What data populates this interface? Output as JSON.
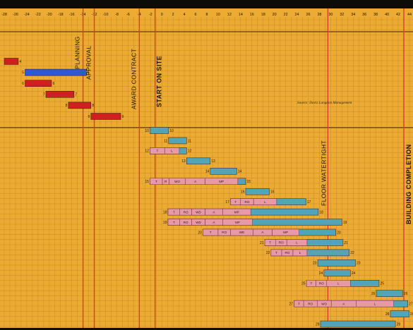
{
  "colors": {
    "background": "#ecab33",
    "grid": "#c98e28",
    "milestone_red": "#d5402b",
    "bar_red": "#cf1f1f",
    "bar_blue": "#2c5bd1",
    "bar_teal": "#52a5b9",
    "bar_pink": "#e79aa6",
    "frame": "#0e0c08"
  },
  "chart_data": {
    "type": "gantt",
    "x_ticks": [
      -28,
      -26,
      -24,
      -22,
      -20,
      -18,
      -16,
      -14,
      -12,
      -10,
      -8,
      -6,
      -4,
      -2,
      0,
      2,
      4,
      6,
      8,
      10,
      12,
      14,
      16,
      18,
      20,
      22,
      24,
      26,
      28,
      30,
      32,
      34,
      36,
      38,
      40,
      42,
      44
    ],
    "xlim": [
      -28,
      44
    ],
    "source": "Source: Davis Langdon Management",
    "milestones": [
      {
        "x": -14,
        "label": "PLANNING"
      },
      {
        "x": -12,
        "label": "APPROVAL"
      },
      {
        "x": -4,
        "label": "AWARD CONTRACT"
      },
      {
        "x": -1.2,
        "label": "START ON SITE",
        "bold": true
      },
      {
        "x": 29.5,
        "label": "FLOOR WATERTIGHT"
      },
      {
        "x": 43,
        "label": "BUILDING COMPLETION",
        "bold": true
      }
    ],
    "bars": [
      {
        "row": 1,
        "start": -28,
        "end": -25.5,
        "color": "red",
        "right_label": "4"
      },
      {
        "row": 2,
        "start": -24.3,
        "end": -13.4,
        "color": "blue",
        "left_label": "5",
        "right_label": "5"
      },
      {
        "row": 3,
        "start": -24.3,
        "end": -19.6,
        "color": "red",
        "left_label": "6",
        "right_label": "6"
      },
      {
        "row": 4,
        "start": -20.6,
        "end": -15.6,
        "color": "red",
        "left_label": "7",
        "right_label": "7"
      },
      {
        "row": 5,
        "start": -16.6,
        "end": -12.6,
        "color": "red",
        "left_label": "8",
        "right_label": "8"
      },
      {
        "row": 6,
        "start": -12.6,
        "end": -7.3,
        "color": "red",
        "left_label": "9",
        "right_label": "9"
      },
      {
        "row": 7,
        "start": -2.1,
        "end": 1.2,
        "color": "teal",
        "left_label": "10",
        "right_label": "10"
      },
      {
        "row": 8,
        "start": 1.2,
        "end": 4.4,
        "color": "teal",
        "left_label": "11",
        "right_label": "11"
      },
      {
        "row": 9,
        "start": -2.1,
        "end": 4.4,
        "color": "teal",
        "left_label": "12",
        "right_label": "12",
        "segments": [
          {
            "start": -2.1,
            "end": 0.5,
            "label": "T"
          },
          {
            "start": 0.5,
            "end": 3.1,
            "label": "L"
          }
        ]
      },
      {
        "row": 10,
        "start": 4.4,
        "end": 8.6,
        "color": "teal",
        "left_label": "13",
        "right_label": "13"
      },
      {
        "row": 11,
        "start": 8.6,
        "end": 13.3,
        "color": "teal",
        "left_label": "14",
        "right_label": "14"
      },
      {
        "row": 12,
        "start": -2.1,
        "end": 14.9,
        "color": "teal",
        "left_label": "15",
        "right_label": "15",
        "segments": [
          {
            "start": -2.1,
            "end": 0.1,
            "label": "T"
          },
          {
            "start": 0.1,
            "end": 1.3,
            "label": "R"
          },
          {
            "start": 1.3,
            "end": 4.2,
            "label": "WO"
          },
          {
            "start": 4.2,
            "end": 7.7,
            "label": "A"
          },
          {
            "start": 7.7,
            "end": 13.5,
            "label": "MP"
          }
        ]
      },
      {
        "row": 13,
        "start": 14.9,
        "end": 19.1,
        "color": "teal",
        "left_label": "16",
        "right_label": "16"
      },
      {
        "row": 14,
        "start": 12.2,
        "end": 25.6,
        "color": "teal",
        "left_label": "17",
        "right_label": "17",
        "segments": [
          {
            "start": 12.2,
            "end": 14.0,
            "label": "T"
          },
          {
            "start": 14.0,
            "end": 16.3,
            "label": "RO"
          },
          {
            "start": 16.3,
            "end": 20.4,
            "label": "L"
          }
        ]
      },
      {
        "row": 15,
        "start": 1.1,
        "end": 27.8,
        "color": "teal",
        "left_label": "18",
        "right_label": "18",
        "segments": [
          {
            "start": 1.1,
            "end": 3.2,
            "label": "T"
          },
          {
            "start": 3.2,
            "end": 5.3,
            "label": "RO"
          },
          {
            "start": 5.3,
            "end": 7.7,
            "label": "WD"
          },
          {
            "start": 7.7,
            "end": 10.8,
            "label": "A"
          },
          {
            "start": 10.8,
            "end": 15.8,
            "label": "MP"
          }
        ]
      },
      {
        "row": 16,
        "start": 1.1,
        "end": 32.0,
        "color": "teal",
        "left_label": "19",
        "right_label": "19",
        "segments": [
          {
            "start": 1.1,
            "end": 3.2,
            "label": "T"
          },
          {
            "start": 3.2,
            "end": 5.3,
            "label": "RO"
          },
          {
            "start": 5.3,
            "end": 7.7,
            "label": "WD"
          },
          {
            "start": 7.7,
            "end": 10.8,
            "label": "A"
          },
          {
            "start": 10.8,
            "end": 16.1,
            "label": "MP"
          }
        ]
      },
      {
        "row": 17,
        "start": 7.3,
        "end": 30.9,
        "color": "teal",
        "left_label": "20",
        "right_label": "20",
        "segments": [
          {
            "start": 7.3,
            "end": 10.0,
            "label": "T"
          },
          {
            "start": 10.0,
            "end": 12.2,
            "label": "RO"
          },
          {
            "start": 12.2,
            "end": 16.2,
            "label": "WD"
          },
          {
            "start": 16.2,
            "end": 19.6,
            "label": "A"
          },
          {
            "start": 19.6,
            "end": 24.4,
            "label": "MP"
          }
        ]
      },
      {
        "row": 18,
        "start": 18.3,
        "end": 32.2,
        "color": "teal",
        "left_label": "21",
        "right_label": "21",
        "segments": [
          {
            "start": 18.3,
            "end": 20.2,
            "label": "T"
          },
          {
            "start": 20.2,
            "end": 22.2,
            "label": "RO"
          },
          {
            "start": 22.2,
            "end": 25.8,
            "label": "L"
          }
        ]
      },
      {
        "row": 19,
        "start": 19.4,
        "end": 33.3,
        "color": "teal",
        "left_label": "22",
        "right_label": "22",
        "segments": [
          {
            "start": 19.4,
            "end": 21.3,
            "label": "T"
          },
          {
            "start": 21.3,
            "end": 23.3,
            "label": "RO"
          },
          {
            "start": 23.3,
            "end": 25.8,
            "label": "L"
          }
        ]
      },
      {
        "row": 20,
        "start": 27.7,
        "end": 34.4,
        "color": "teal",
        "left_label": "23",
        "right_label": "23"
      },
      {
        "row": 21,
        "start": 28.8,
        "end": 33.5,
        "color": "teal",
        "left_label": "24",
        "right_label": "24"
      },
      {
        "row": 22,
        "start": 25.7,
        "end": 38.6,
        "color": "teal",
        "left_label": "25",
        "right_label": "25",
        "segments": [
          {
            "start": 25.7,
            "end": 27.4,
            "label": "T"
          },
          {
            "start": 27.4,
            "end": 29.3,
            "label": "RO"
          },
          {
            "start": 29.3,
            "end": 33.5,
            "label": "L"
          }
        ]
      },
      {
        "row": 23,
        "start": 38.1,
        "end": 42.8,
        "color": "teal",
        "left_label": "26",
        "right_label": "26"
      },
      {
        "row": 24,
        "start": 23.5,
        "end": 43.7,
        "color": "teal",
        "left_label": "27",
        "right_label": "27",
        "segments": [
          {
            "start": 23.5,
            "end": 25.2,
            "label": "T"
          },
          {
            "start": 25.2,
            "end": 27.6,
            "label": "RO"
          },
          {
            "start": 27.6,
            "end": 30.1,
            "label": "WO"
          },
          {
            "start": 30.1,
            "end": 34.5,
            "label": "A"
          },
          {
            "start": 34.5,
            "end": 41.2,
            "label": "L"
          }
        ]
      },
      {
        "row": 25,
        "start": 40.6,
        "end": 43.9,
        "color": "teal",
        "left_label": "28",
        "right_label": "28"
      },
      {
        "row": 26,
        "start": 28.2,
        "end": 41.5,
        "color": "teal",
        "left_label": "29",
        "right_label": "29"
      }
    ]
  }
}
